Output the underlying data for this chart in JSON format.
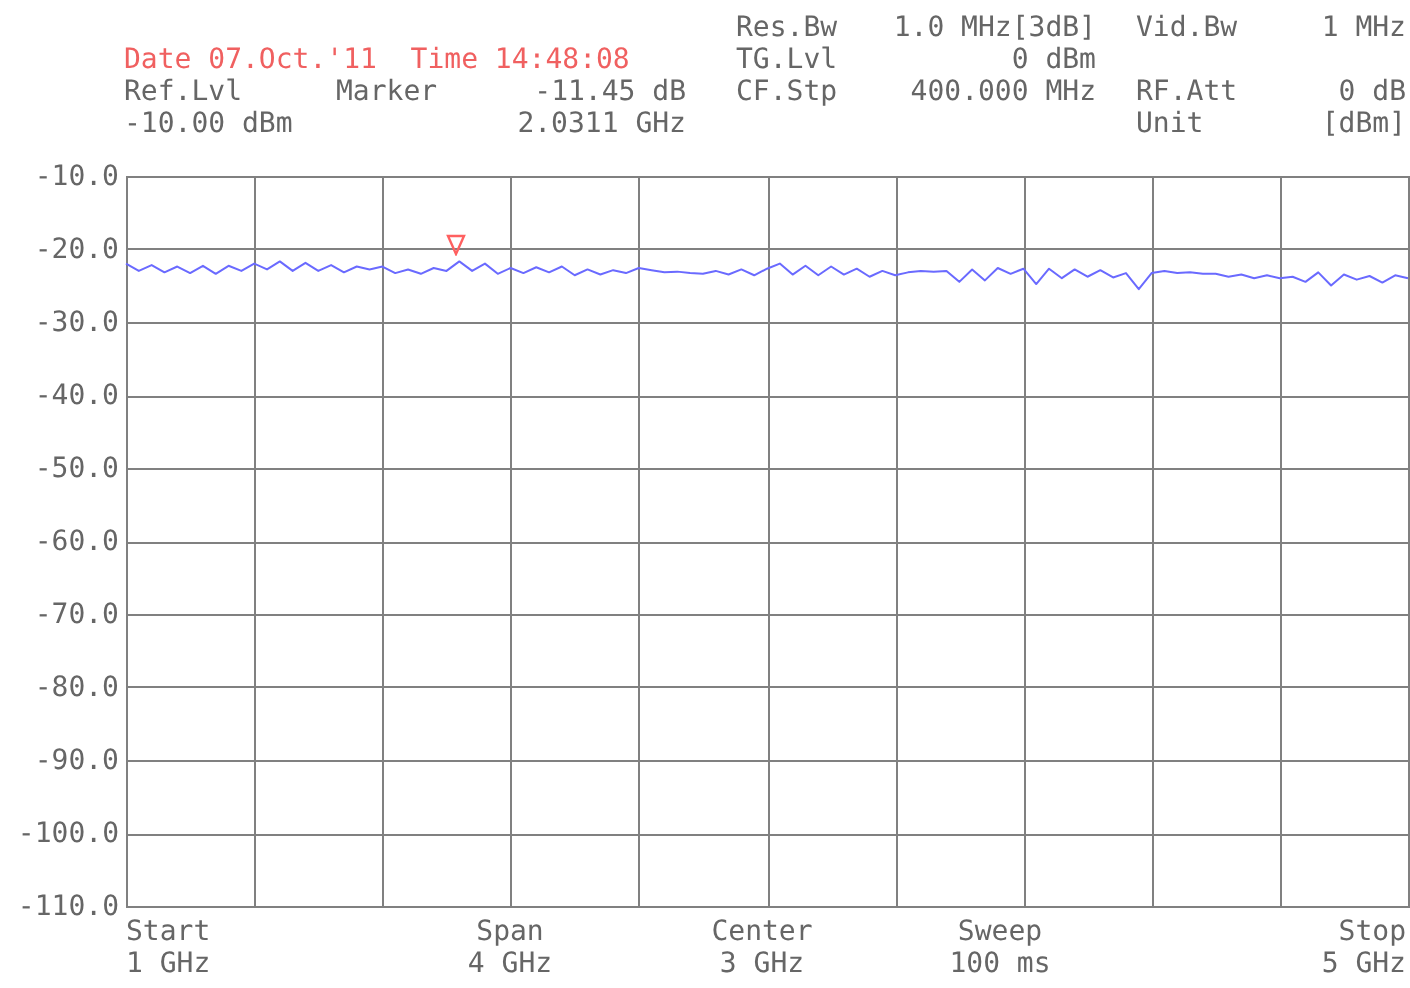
{
  "chart_data": {
    "type": "line",
    "categories": [
      null,
      null,
      null,
      null,
      null,
      null,
      null,
      null,
      null,
      null,
      null,
      null,
      null,
      null,
      null,
      null,
      null,
      null,
      null,
      null,
      null,
      null,
      null,
      null,
      null,
      null,
      null,
      null,
      null,
      null,
      null,
      null,
      null,
      null,
      null,
      null,
      null,
      null,
      null,
      null,
      null,
      null,
      null,
      null,
      null,
      null,
      null,
      null,
      null,
      null,
      null,
      null,
      null,
      null,
      null,
      null,
      null,
      null,
      null,
      null,
      null,
      null,
      null,
      null,
      null,
      null,
      null,
      null,
      null,
      null,
      null,
      null,
      null,
      null,
      null,
      null,
      null,
      null,
      null,
      null,
      null,
      null,
      null,
      null,
      null,
      null,
      null,
      null,
      null,
      null,
      null,
      null,
      null,
      null,
      null,
      null,
      null,
      null,
      null,
      null,
      null
    ],
    "series": [
      {
        "color": "#6a6aff",
        "values": [
          -22.0,
          -23.0,
          -22.2,
          -23.2,
          -22.4,
          -23.3,
          -22.3,
          -23.4,
          -22.3,
          -23.0,
          -22.0,
          -22.8,
          -21.7,
          -23.0,
          -21.9,
          -23.0,
          -22.2,
          -23.2,
          -22.4,
          -22.8,
          -22.4,
          -23.3,
          -22.8,
          -23.4,
          -22.6,
          -23.0,
          -21.7,
          -23.0,
          -22.0,
          -23.4,
          -22.6,
          -23.3,
          -22.5,
          -23.2,
          -22.4,
          -23.6,
          -22.8,
          -23.5,
          -22.9,
          -23.3,
          -22.6,
          -22.9,
          -23.2,
          -23.1,
          -23.3,
          -23.4,
          -23.0,
          -23.5,
          -22.8,
          -23.6,
          -22.7,
          -22.0,
          -23.5,
          -22.3,
          -23.6,
          -22.4,
          -23.5,
          -22.7,
          -23.8,
          -23.0,
          -23.6,
          -23.2,
          -23.0,
          -23.1,
          -23.0,
          -24.5,
          -22.8,
          -24.3,
          -22.6,
          -23.4,
          -22.7,
          -24.8,
          -22.7,
          -24.0,
          -22.8,
          -23.8,
          -22.9,
          -23.9,
          -23.3,
          -25.5,
          -23.3,
          -23.0,
          -23.3,
          -23.2,
          -23.4,
          -23.4,
          -23.8,
          -23.5,
          -24.0,
          -23.6,
          -24.0,
          -23.8,
          -24.5,
          -23.2,
          -25.0,
          -23.5,
          -24.2,
          -23.7,
          -24.6,
          -23.6,
          -24.0
        ]
      }
    ],
    "ylim": [
      -110,
      -10
    ],
    "yticks": [
      {
        "value": -10,
        "label": "-10.0"
      },
      {
        "value": -20,
        "label": "-20.0"
      },
      {
        "value": -30,
        "label": "-30.0"
      },
      {
        "value": -40,
        "label": "-40.0"
      },
      {
        "value": -50,
        "label": "-50.0"
      },
      {
        "value": -60,
        "label": "-60.0"
      },
      {
        "value": -70,
        "label": "-70.0"
      },
      {
        "value": -80,
        "label": "-80.0"
      },
      {
        "value": -90,
        "label": "-90.0"
      },
      {
        "value": -100,
        "label": "-100.0"
      },
      {
        "value": -110,
        "label": "-110.0"
      }
    ],
    "tick_labels": "y",
    "grid": true,
    "line_style": "solid",
    "annotations": [
      "Date 07.Oct.'11  Time 14:48:08",
      "Ref.Lvl",
      "-10.00 dBm",
      "Marker",
      "-11.45 dB",
      "2.0311 GHz",
      "Res.Bw",
      "1.0 MHz[3dB]",
      "TG.Lvl",
      "0 dBm",
      "CF.Stp",
      "400.000 MHz",
      "Vid.Bw",
      "1 MHz",
      "RF.Att",
      "0 dB",
      "Unit",
      "[dBm]",
      "Start\n1 GHz",
      "Span\n4 GHz",
      "Center\n3 GHz",
      "Sweep\n100 ms",
      "Stop\n5 GHz"
    ]
  }
}
